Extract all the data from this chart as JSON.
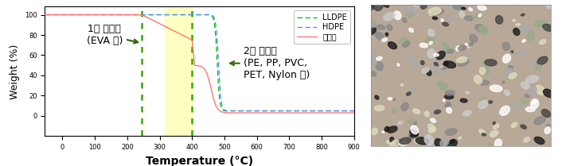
{
  "xlabel": "Temperature (°C)",
  "ylabel": "Weight (%)",
  "xlim": [
    -54.08,
    900
  ],
  "ylim": [
    -20,
    108
  ],
  "x_ticks": [
    0,
    100,
    200,
    300,
    400,
    500,
    600,
    700,
    800,
    900
  ],
  "y_ticks": [
    0,
    20,
    40,
    60,
    80,
    100
  ],
  "line_LLDPE_color": "#00bb00",
  "line_HDPE_color": "#4488ff",
  "line_vinyl_color": "#ff7777",
  "dashed_vline1_x": 245,
  "dashed_vline2_x": 400,
  "highlight_x1": 315,
  "highlight_x2": 400,
  "highlight_color": "#ffff99",
  "annotation1_text": "1차 열분해\n(EVA 등)",
  "annotation2_text": "2차 열분해\n(PE, PP, PVC,\nPET, Nylon 등)",
  "legend_labels": [
    "LLDPE",
    "HDPE",
    "폐비닐"
  ],
  "bg_color": "#ffffff",
  "plot_bg_color": "#f8f8f8",
  "xlabel_fontsize": 10,
  "ylabel_fontsize": 9,
  "annot_fontsize": 9,
  "legend_fontsize": 7,
  "tick_fontsize": 6
}
